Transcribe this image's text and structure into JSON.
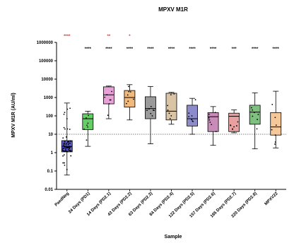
{
  "chart_data": {
    "type": "box",
    "title": "MPXV M1R",
    "xlabel": "Sample",
    "ylabel": "MPXV M1R (AU/ml)",
    "yscale": "log",
    "ylim": [
      0.01,
      1000000
    ],
    "yticks": [
      "0.01",
      "0.1",
      "1",
      "10",
      "100",
      "1000",
      "10000",
      "100000",
      "1000000"
    ],
    "ytick_values": [
      0.01,
      0.1,
      1,
      10,
      100,
      1000,
      10000,
      100000,
      1000000
    ],
    "threshold": 10,
    "categories": [
      "PaedNeg",
      "24 Days (PD1)",
      "14 Days (PD2.1)",
      "43 Days (PD2.2)",
      "63 Days (PD2.3)",
      "84 Days (PD2.4)",
      "122 Days (PD2.5)",
      "157 Days (PD2.6)",
      "185 Days (PD2.7)",
      "220 Days (PD2.8)",
      "MPXV22"
    ],
    "colors": [
      "#5b5bd6",
      "#66cc66",
      "#e8a0d8",
      "#f3b97a",
      "#9a9a9a",
      "#d9c4a6",
      "#8c8ccc",
      "#c98cb8",
      "#e8a0a0",
      "#7fbf7f",
      "#f5c89a"
    ],
    "boxes": [
      {
        "min": 0.06,
        "q1": 1.1,
        "median": 2.2,
        "q3": 4.5,
        "max": 500
      },
      {
        "min": 2.2,
        "q1": 18,
        "median": 70,
        "q3": 130,
        "max": 180
      },
      {
        "min": 70,
        "q1": 450,
        "median": 1400,
        "q3": 3800,
        "max": 4200
      },
      {
        "min": 60,
        "q1": 300,
        "median": 1000,
        "q3": 2400,
        "max": 5000
      },
      {
        "min": 3,
        "q1": 70,
        "median": 250,
        "q3": 1100,
        "max": 4000
      },
      {
        "min": 35,
        "q1": 60,
        "median": 180,
        "q3": 1700,
        "max": 1900
      },
      {
        "min": 10,
        "q1": 28,
        "median": 70,
        "q3": 380,
        "max": 900
      },
      {
        "min": 2.5,
        "q1": 14,
        "median": 90,
        "q3": 150,
        "max": 320
      },
      {
        "min": 12,
        "q1": 14,
        "median": 95,
        "q3": 140,
        "max": 210
      },
      {
        "min": 1.6,
        "q1": 35,
        "median": 160,
        "q3": 380,
        "max": 1800
      },
      {
        "min": 1.8,
        "q1": 9,
        "median": 25,
        "q3": 150,
        "max": 2200
      }
    ],
    "sig_red": [
      "****",
      "",
      "**",
      "*",
      "",
      "",
      "",
      "",
      "",
      "",
      ""
    ],
    "sig_black": [
      "",
      "****",
      "****",
      "****",
      "****",
      "****",
      "****",
      "****",
      "***",
      "****",
      "****"
    ],
    "sig_colors": {
      "red": "#e03030",
      "black": "#000000"
    }
  }
}
